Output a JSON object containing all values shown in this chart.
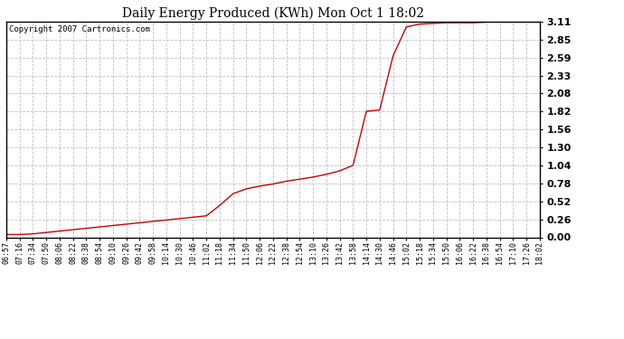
{
  "title": "Daily Energy Produced (KWh) Mon Oct 1 18:02",
  "copyright": "Copyright 2007 Cartronics.com",
  "line_color": "#cc0000",
  "bg_color": "#ffffff",
  "plot_bg_color": "#ffffff",
  "grid_color": "#c0c0c0",
  "yticks": [
    0.0,
    0.26,
    0.52,
    0.78,
    1.04,
    1.3,
    1.56,
    1.82,
    2.08,
    2.33,
    2.59,
    2.85,
    3.11
  ],
  "ylim": [
    0.0,
    3.11
  ],
  "xtick_labels": [
    "06:57",
    "07:16",
    "07:34",
    "07:50",
    "08:06",
    "08:22",
    "08:38",
    "08:54",
    "09:10",
    "09:26",
    "09:42",
    "09:58",
    "10:14",
    "10:30",
    "10:46",
    "11:02",
    "11:18",
    "11:34",
    "11:50",
    "12:06",
    "12:22",
    "12:38",
    "12:54",
    "13:10",
    "13:26",
    "13:42",
    "13:58",
    "14:14",
    "14:30",
    "14:46",
    "15:02",
    "15:18",
    "15:34",
    "15:50",
    "16:06",
    "16:22",
    "16:38",
    "16:54",
    "17:10",
    "17:26",
    "18:02"
  ],
  "y_data": [
    0.04,
    0.04,
    0.05,
    0.07,
    0.09,
    0.11,
    0.13,
    0.15,
    0.17,
    0.19,
    0.21,
    0.23,
    0.25,
    0.27,
    0.29,
    0.31,
    0.46,
    0.63,
    0.7,
    0.74,
    0.77,
    0.81,
    0.84,
    0.87,
    0.91,
    0.96,
    1.04,
    1.82,
    1.84,
    2.62,
    3.04,
    3.08,
    3.09,
    3.1,
    3.1,
    3.1,
    3.11,
    3.11,
    3.11,
    3.11,
    3.11
  ]
}
